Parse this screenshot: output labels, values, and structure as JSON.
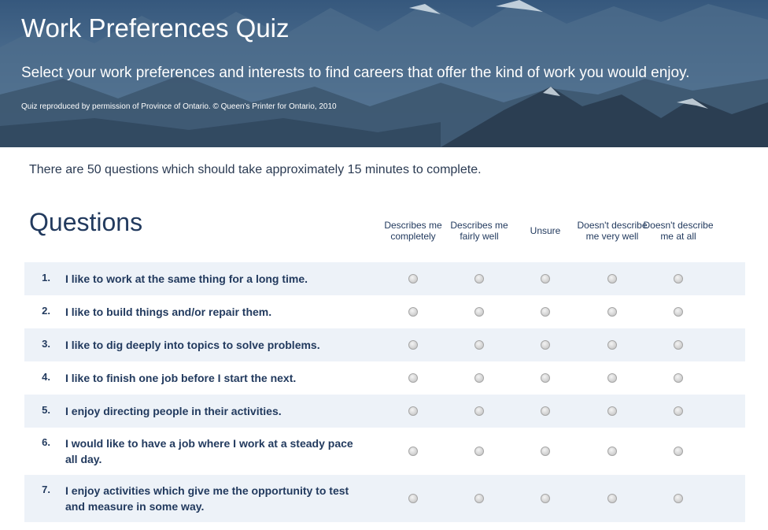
{
  "hero": {
    "title": "Work Preferences Quiz",
    "subtitle": "Select your work preferences and interests to find careers that offer the kind of work you would enjoy.",
    "credit": "Quiz reproduced by permission of Province of Ontario. © Queen's Printer for Ontario, 2010"
  },
  "intro": "There are 50 questions which should take approximately 15 minutes to complete.",
  "questions_heading": "Questions",
  "columns": [
    "Describes me completely",
    "Describes me fairly well",
    "Unsure",
    "Doesn't describe me very well",
    "Doesn't describe me at all"
  ],
  "questions": [
    {
      "number": "1.",
      "text": "I like to work at the same thing for a long time."
    },
    {
      "number": "2.",
      "text": "I like to build things and/or repair them."
    },
    {
      "number": "3.",
      "text": "I like to dig deeply into topics to solve problems."
    },
    {
      "number": "4.",
      "text": "I like to finish one job before I start the next."
    },
    {
      "number": "5.",
      "text": "I enjoy directing people in their activities."
    },
    {
      "number": "6.",
      "text": "I would like to have a job where I work at a steady pace all day."
    },
    {
      "number": "7.",
      "text": "I enjoy activities which give me the opportunity to test and measure in some way."
    }
  ]
}
